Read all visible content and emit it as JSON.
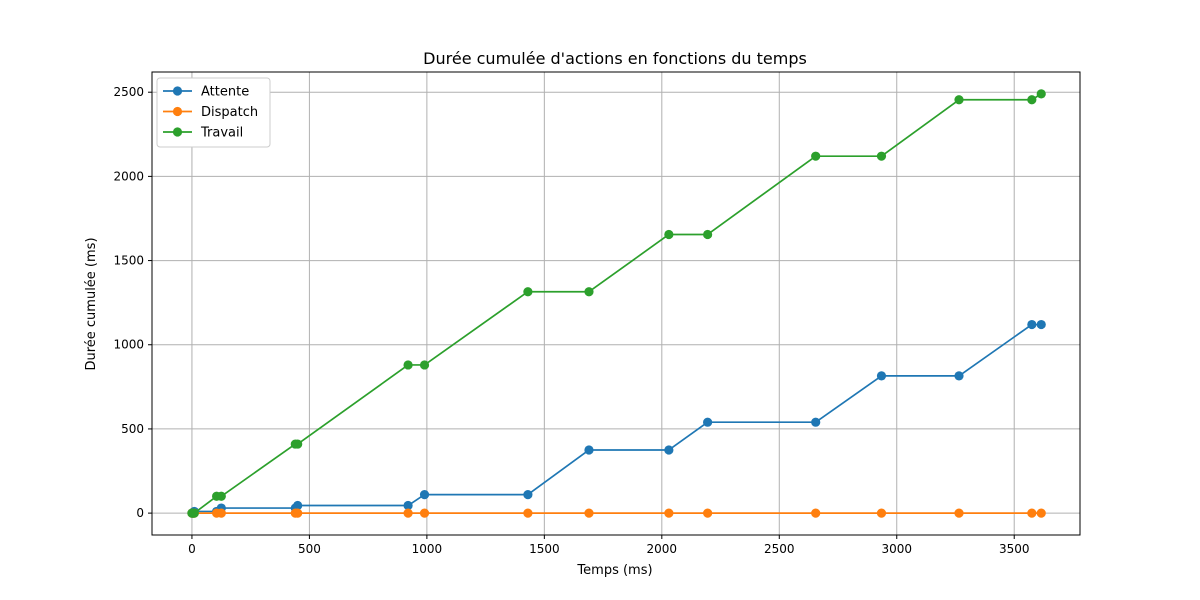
{
  "chart_data": {
    "type": "line",
    "title": "Durée cumulée d'actions en fonctions du temps",
    "xlabel": "Temps (ms)",
    "ylabel": "Durée cumulée (ms)",
    "xlim": [
      -170,
      3780
    ],
    "ylim": [
      -130,
      2620
    ],
    "xticks": [
      0,
      500,
      1000,
      1500,
      2000,
      2500,
      3000,
      3500
    ],
    "yticks": [
      0,
      500,
      1000,
      1500,
      2000,
      2500
    ],
    "grid": true,
    "legend_position": "top-left",
    "series": [
      {
        "name": "Attente",
        "color": "#1f77b4",
        "x": [
          0,
          5,
          10,
          105,
          125,
          440,
          450,
          920,
          990,
          1430,
          1690,
          2030,
          2195,
          2655,
          2935,
          3265,
          3575,
          3615
        ],
        "y": [
          0,
          0,
          10,
          10,
          30,
          30,
          45,
          45,
          110,
          110,
          375,
          375,
          540,
          540,
          815,
          815,
          1120,
          1120
        ]
      },
      {
        "name": "Dispatch",
        "color": "#ff7f0e",
        "x": [
          0,
          5,
          10,
          105,
          125,
          440,
          450,
          920,
          990,
          1430,
          1690,
          2030,
          2195,
          2655,
          2935,
          3265,
          3575,
          3615
        ],
        "y": [
          0,
          0,
          0,
          0,
          0,
          0,
          0,
          0,
          0,
          0,
          0,
          0,
          0,
          0,
          0,
          0,
          0,
          0
        ]
      },
      {
        "name": "Travail",
        "color": "#2ca02c",
        "x": [
          0,
          5,
          10,
          105,
          125,
          440,
          450,
          920,
          990,
          1430,
          1690,
          2030,
          2195,
          2655,
          2935,
          3265,
          3575,
          3615
        ],
        "y": [
          0,
          0,
          0,
          100,
          100,
          410,
          410,
          880,
          880,
          1315,
          1315,
          1655,
          1655,
          2120,
          2120,
          2455,
          2455,
          2490
        ]
      }
    ]
  }
}
